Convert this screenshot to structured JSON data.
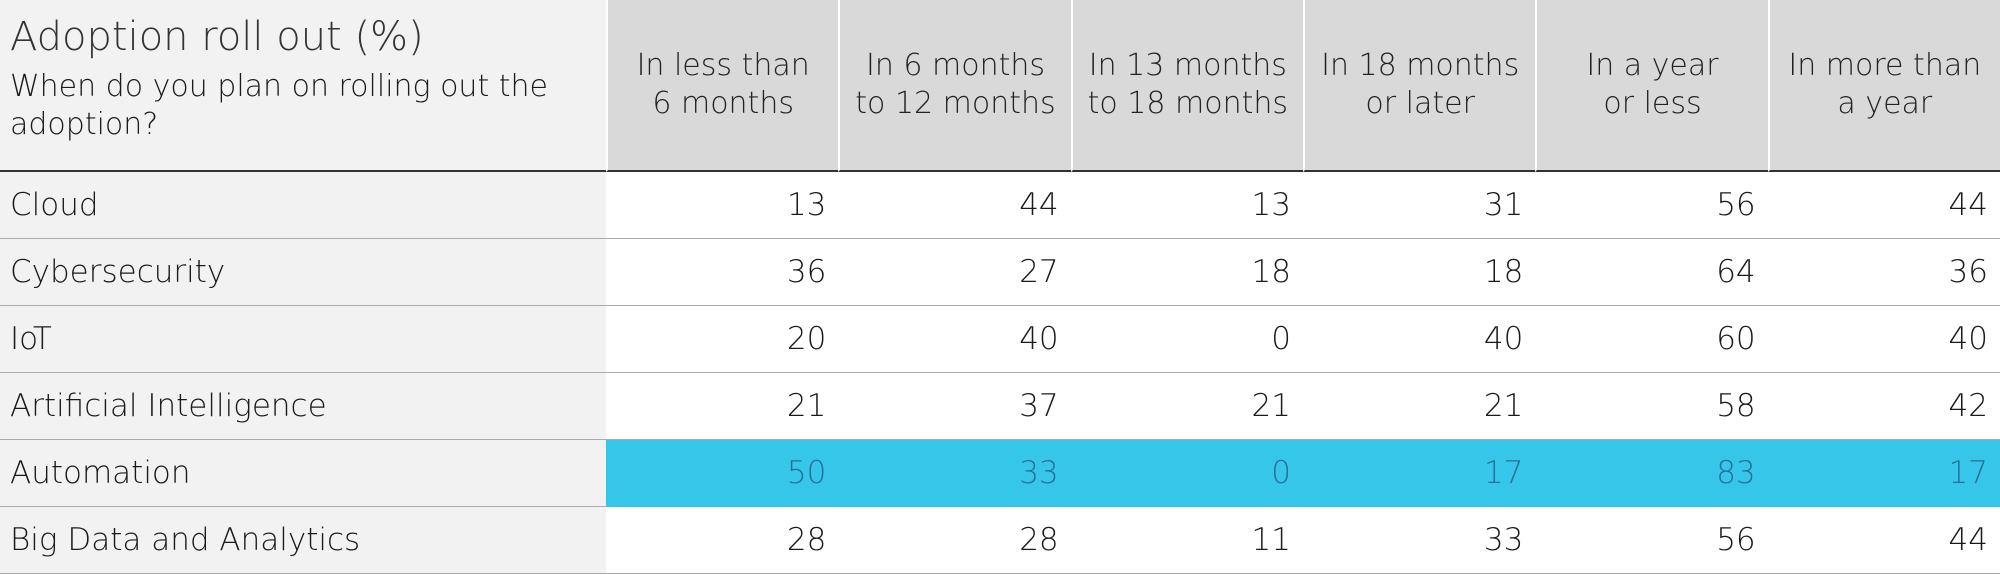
{
  "header": {
    "title": "Adoption roll out (%)",
    "subtitle": "When do you plan on rolling out the adoption?"
  },
  "table": {
    "columns": [
      [
        "In less than",
        "6 months"
      ],
      [
        "In 6 months",
        "to 12 months"
      ],
      [
        "In 13 months",
        "to 18 months"
      ],
      [
        "In 18 months",
        "or later"
      ],
      [
        "In a year",
        "or less"
      ],
      [
        "In more than",
        "a year"
      ]
    ],
    "rows": [
      {
        "label": "Cloud",
        "values": [
          13,
          44,
          13,
          31,
          56,
          44
        ]
      },
      {
        "label": "Cybersecurity",
        "values": [
          36,
          27,
          18,
          18,
          64,
          36
        ]
      },
      {
        "label": "IoT",
        "values": [
          20,
          40,
          0,
          40,
          60,
          40
        ]
      },
      {
        "label": "Artificial Intelligence",
        "values": [
          21,
          37,
          21,
          21,
          58,
          42
        ]
      },
      {
        "label": "Automation",
        "values": [
          50,
          33,
          0,
          17,
          83,
          17
        ],
        "highlight_color": "#35c6ea",
        "highlight_text_color": "#2a6f95"
      },
      {
        "label": "Big Data and Analytics",
        "values": [
          28,
          28,
          11,
          33,
          56,
          44
        ]
      }
    ]
  }
}
